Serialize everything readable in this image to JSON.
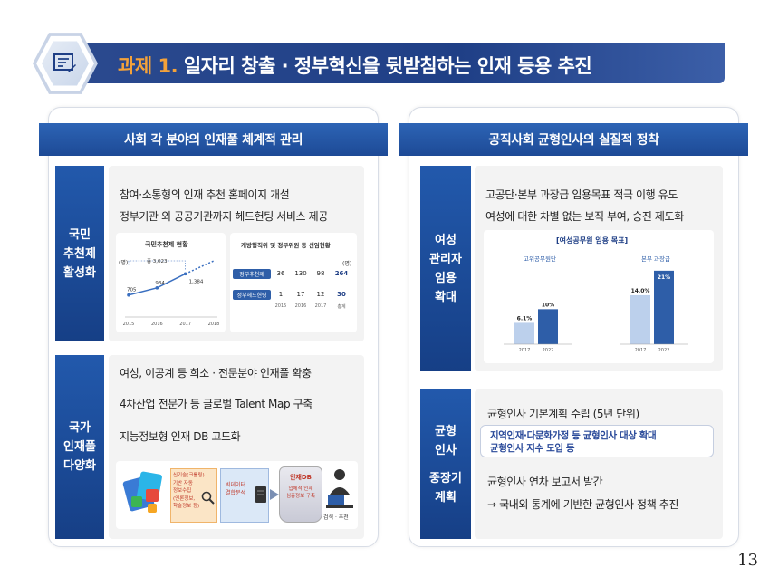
{
  "title": {
    "prefix": "과제 1.",
    "text": "일자리 창출 · 정부혁신을 뒷받침하는 인재 등용 추진"
  },
  "left_panel": {
    "header": "사회 각 분야의 인재풀 체계적 관리",
    "section1": {
      "label_lines": [
        "국민",
        "추천제",
        "활성화"
      ],
      "lines": [
        "참여·소통형의 인재 추천 홈페이지 개설",
        "정부기관 외 공공기관까지 헤드헌팅 서비스 제공"
      ],
      "chart_title": "국민추천제 현황",
      "chart_unit": "(명)",
      "chart_data": {
        "type": "line",
        "x": [
          "2015",
          "2016",
          "2017",
          "2018"
        ],
        "values": [
          705,
          934,
          1384,
          null
        ],
        "annotation": "총 3,023"
      },
      "table_title": "개방형직위 및 정부위원 등 선임현황",
      "table_unit": "(명)",
      "table": {
        "columns": [
          "2015",
          "2016",
          "2017",
          "총계"
        ],
        "rows": [
          {
            "label": "정부추천제",
            "values": [
              "36",
              "130",
              "98",
              "264"
            ]
          },
          {
            "label": "정부헤드헌팅",
            "values": [
              "1",
              "17",
              "12",
              "30"
            ]
          }
        ]
      }
    },
    "section2": {
      "label_lines": [
        "국가",
        "인재풀",
        "다양화"
      ],
      "lines": [
        "여성, 이공계 등 희소 · 전문분야 인재풀 확충",
        "4차산업 전문가 등 글로벌 Talent Map 구축",
        "지능정보형 인재 DB 고도화"
      ],
      "flow": {
        "step1": [
          "신기술(크롤링)",
          "기반 자동",
          "정보수집",
          "(언론정보,",
          "학술정보 등)"
        ],
        "step2": [
          "빅데이터",
          "결합분석"
        ],
        "step3_title": "인재DB",
        "step3": [
          "입체적 인재",
          "심층정보 구축"
        ],
        "step4": "검색 · 추천"
      }
    }
  },
  "right_panel": {
    "header": "공직사회 균형인사의 실질적 정착",
    "section1": {
      "label_lines": [
        "여성",
        "관리자",
        "임용",
        "확대"
      ],
      "lines": [
        "고공단·본부 과장급 임용목표 적극 이행 유도",
        "여성에 대한 차별 없는 보직 부여, 승진 제도화"
      ],
      "chart_title": "[여성공무원 임용 목표]",
      "chart_data": [
        {
          "type": "bar",
          "title": "고위공무원단",
          "categories": [
            "2017",
            "2022"
          ],
          "values": [
            6.1,
            10
          ],
          "labels": [
            "6.1%",
            "10%"
          ]
        },
        {
          "type": "bar",
          "title": "본부 과장급",
          "categories": [
            "2017",
            "2022"
          ],
          "values": [
            14.0,
            21
          ],
          "labels": [
            "14.0%",
            "21%"
          ]
        }
      ],
      "colors": {
        "bar_2017": "#bcd0ec",
        "bar_2022": "#2e5ea8"
      }
    },
    "section2": {
      "label_lines": [
        "균형",
        "인사",
        "",
        "중장기",
        "계획"
      ],
      "lines": [
        "균형인사 기본계획 수립 (5년 단위)",
        "균형인사 연차 보고서 발간",
        "→ 국내외 통계에 기반한 균형인사 정책 추진"
      ],
      "box_lines": [
        "지역인재·다문화가정 등 균형인사 대상 확대",
        "균형인사 지수 도입 등"
      ]
    }
  },
  "page_number": "13"
}
